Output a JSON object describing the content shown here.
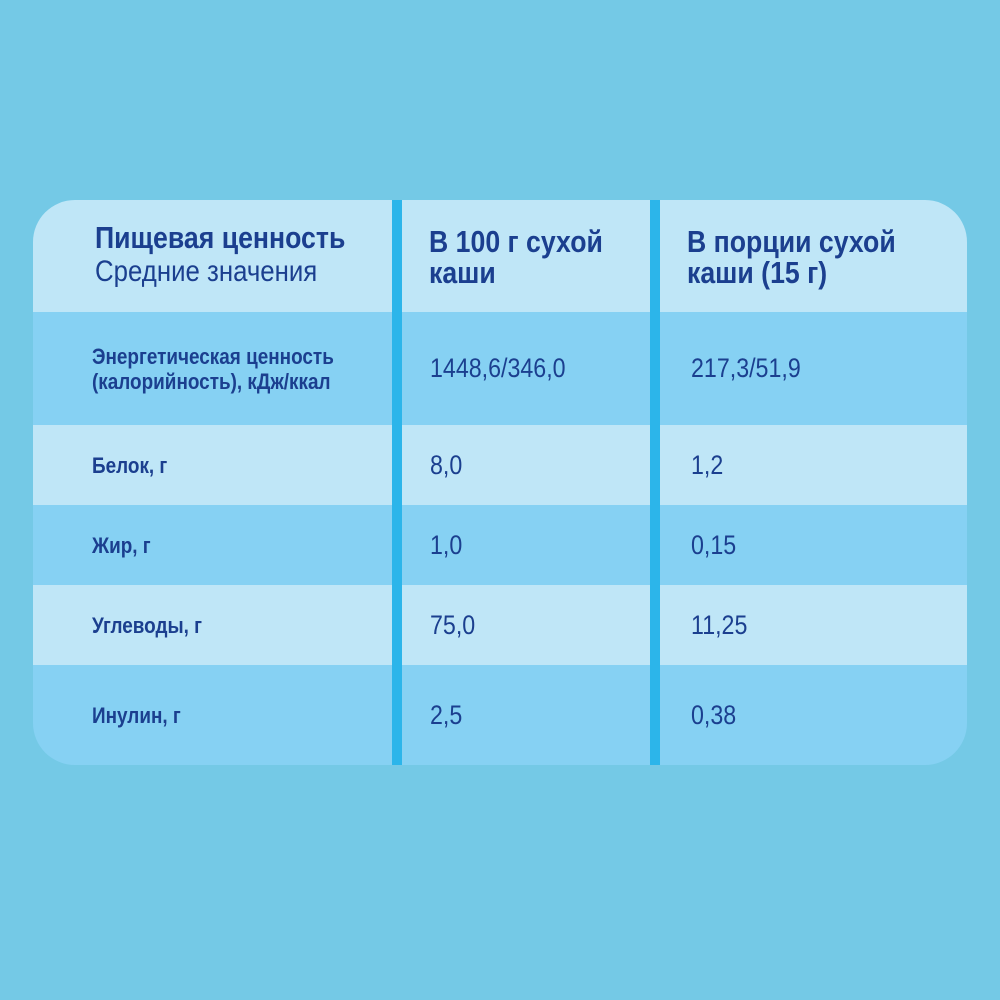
{
  "header": {
    "title": "Пищевая ценность",
    "subtitle": "Средние значения",
    "columns": [
      "В 100 г сухой каши",
      "В порции сухой каши (15 г)"
    ]
  },
  "table": {
    "rows": [
      [
        "Энергетическая ценность (калорийность), кДж/ккал",
        "1448,6/346,0",
        "217,3/51,9"
      ],
      [
        "Белок, г",
        "8,0",
        "1,2"
      ],
      [
        "Жир, г",
        "1,0",
        "0,15"
      ],
      [
        "Углеводы, г",
        "75,0",
        "11,25"
      ],
      [
        "Инулин, г",
        "2,5",
        "0,38"
      ]
    ]
  }
}
